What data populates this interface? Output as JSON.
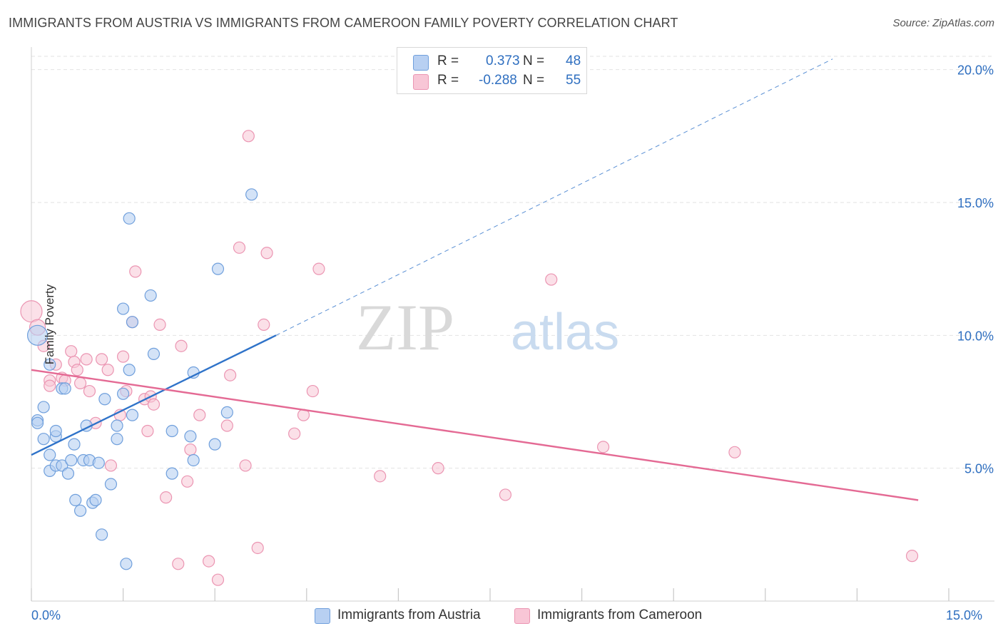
{
  "header": {
    "title": "IMMIGRANTS FROM AUSTRIA VS IMMIGRANTS FROM CAMEROON FAMILY POVERTY CORRELATION CHART",
    "source": "Source: ZipAtlas.com"
  },
  "watermark": {
    "zip": "ZIP",
    "atlas": "atlas"
  },
  "legend": {
    "austria": {
      "r_label": "R =",
      "r_value": "0.373",
      "n_label": "N =",
      "n_value": "48"
    },
    "cameroon": {
      "r_label": "R =",
      "r_value": "-0.288",
      "n_label": "N =",
      "n_value": "55"
    }
  },
  "bottom_legend": {
    "austria": "Immigrants from Austria",
    "cameroon": "Immigrants from Cameroon"
  },
  "axes": {
    "x_min_label": "0.0%",
    "x_max_label": "15.0%"
  },
  "colors": {
    "austria_fill": "#b8d0f2",
    "austria_stroke": "#6f9fdc",
    "austria_line": "#2f73c9",
    "cameroon_fill": "#f8c6d6",
    "cameroon_stroke": "#eb95b2",
    "cameroon_line": "#e46a94",
    "tick_label": "#2f6fc0",
    "grid": "#e2e2e2"
  },
  "chart_data": {
    "type": "scatter",
    "title": "IMMIGRANTS FROM AUSTRIA VS IMMIGRANTS FROM CAMEROON FAMILY POVERTY CORRELATION CHART",
    "xlabel": "",
    "ylabel": "Family Poverty",
    "xlim": [
      0,
      15
    ],
    "ylim": [
      0,
      20.5
    ],
    "y_ticks": [
      5,
      10,
      15,
      20
    ],
    "y_tick_labels": [
      "5.0%",
      "10.0%",
      "15.0%",
      "20.0%"
    ],
    "x_tick_labels": [
      "0.0%",
      "15.0%"
    ],
    "grid": "horizontal dashed",
    "legend_position": "top-center",
    "series": [
      {
        "name": "Immigrants from Austria",
        "color": "#6f9fdc",
        "R": 0.373,
        "N": 48,
        "trend": {
          "x": [
            0,
            4.0
          ],
          "y": [
            5.5,
            10.0
          ],
          "extended_to": [
            13.1,
            20.4
          ]
        },
        "points": [
          [
            0.1,
            10.0
          ],
          [
            0.1,
            6.8
          ],
          [
            0.1,
            6.7
          ],
          [
            0.2,
            6.1
          ],
          [
            0.2,
            7.3
          ],
          [
            0.3,
            4.9
          ],
          [
            0.3,
            5.5
          ],
          [
            0.3,
            8.9
          ],
          [
            0.4,
            6.2
          ],
          [
            0.4,
            5.1
          ],
          [
            0.4,
            6.4
          ],
          [
            0.5,
            5.1
          ],
          [
            0.5,
            8.0
          ],
          [
            0.55,
            8.0
          ],
          [
            0.6,
            4.8
          ],
          [
            0.65,
            5.3
          ],
          [
            0.7,
            5.9
          ],
          [
            0.72,
            3.8
          ],
          [
            0.8,
            3.4
          ],
          [
            0.85,
            5.3
          ],
          [
            0.9,
            6.6
          ],
          [
            0.95,
            5.3
          ],
          [
            1.0,
            3.7
          ],
          [
            1.05,
            3.8
          ],
          [
            1.1,
            5.2
          ],
          [
            1.15,
            2.5
          ],
          [
            1.2,
            7.6
          ],
          [
            1.3,
            4.4
          ],
          [
            1.4,
            6.1
          ],
          [
            1.4,
            6.6
          ],
          [
            1.5,
            7.8
          ],
          [
            1.5,
            11.0
          ],
          [
            1.55,
            1.4
          ],
          [
            1.6,
            8.7
          ],
          [
            1.6,
            14.4
          ],
          [
            1.65,
            7.0
          ],
          [
            1.65,
            10.5
          ],
          [
            1.95,
            11.5
          ],
          [
            2.0,
            9.3
          ],
          [
            2.3,
            6.4
          ],
          [
            2.3,
            4.8
          ],
          [
            2.6,
            6.2
          ],
          [
            2.65,
            5.3
          ],
          [
            2.65,
            8.6
          ],
          [
            3.0,
            5.9
          ],
          [
            3.05,
            12.5
          ],
          [
            3.2,
            7.1
          ],
          [
            3.6,
            15.3
          ]
        ]
      },
      {
        "name": "Immigrants from Cameroon",
        "color": "#eb95b2",
        "R": -0.288,
        "N": 55,
        "trend": {
          "x": [
            0,
            14.5
          ],
          "y": [
            8.7,
            3.8
          ]
        },
        "points": [
          [
            0.0,
            10.9
          ],
          [
            0.1,
            10.3
          ],
          [
            0.2,
            9.6
          ],
          [
            0.3,
            8.3
          ],
          [
            0.3,
            8.1
          ],
          [
            0.4,
            8.9
          ],
          [
            0.5,
            8.4
          ],
          [
            0.55,
            8.3
          ],
          [
            0.65,
            9.4
          ],
          [
            0.7,
            9.0
          ],
          [
            0.75,
            8.7
          ],
          [
            0.8,
            8.2
          ],
          [
            0.9,
            9.1
          ],
          [
            0.95,
            7.9
          ],
          [
            1.05,
            6.7
          ],
          [
            1.15,
            9.1
          ],
          [
            1.25,
            8.7
          ],
          [
            1.3,
            5.1
          ],
          [
            1.45,
            7.0
          ],
          [
            1.5,
            9.2
          ],
          [
            1.55,
            7.9
          ],
          [
            1.65,
            10.5
          ],
          [
            1.7,
            12.4
          ],
          [
            1.85,
            7.6
          ],
          [
            1.9,
            6.4
          ],
          [
            1.95,
            7.7
          ],
          [
            2.0,
            7.4
          ],
          [
            2.1,
            10.4
          ],
          [
            2.2,
            3.9
          ],
          [
            2.4,
            1.4
          ],
          [
            2.45,
            9.6
          ],
          [
            2.55,
            4.5
          ],
          [
            2.6,
            5.7
          ],
          [
            2.75,
            7.0
          ],
          [
            2.9,
            1.5
          ],
          [
            3.05,
            0.8
          ],
          [
            3.2,
            6.6
          ],
          [
            3.25,
            8.5
          ],
          [
            3.4,
            13.3
          ],
          [
            3.5,
            5.1
          ],
          [
            3.55,
            17.5
          ],
          [
            3.7,
            2.0
          ],
          [
            3.8,
            10.4
          ],
          [
            3.85,
            13.1
          ],
          [
            4.3,
            6.3
          ],
          [
            4.45,
            7.0
          ],
          [
            4.6,
            7.9
          ],
          [
            4.7,
            12.5
          ],
          [
            5.7,
            4.7
          ],
          [
            6.65,
            5.0
          ],
          [
            7.75,
            4.0
          ],
          [
            8.5,
            12.1
          ],
          [
            9.35,
            5.8
          ],
          [
            11.5,
            5.6
          ],
          [
            14.4,
            1.7
          ]
        ]
      }
    ]
  }
}
